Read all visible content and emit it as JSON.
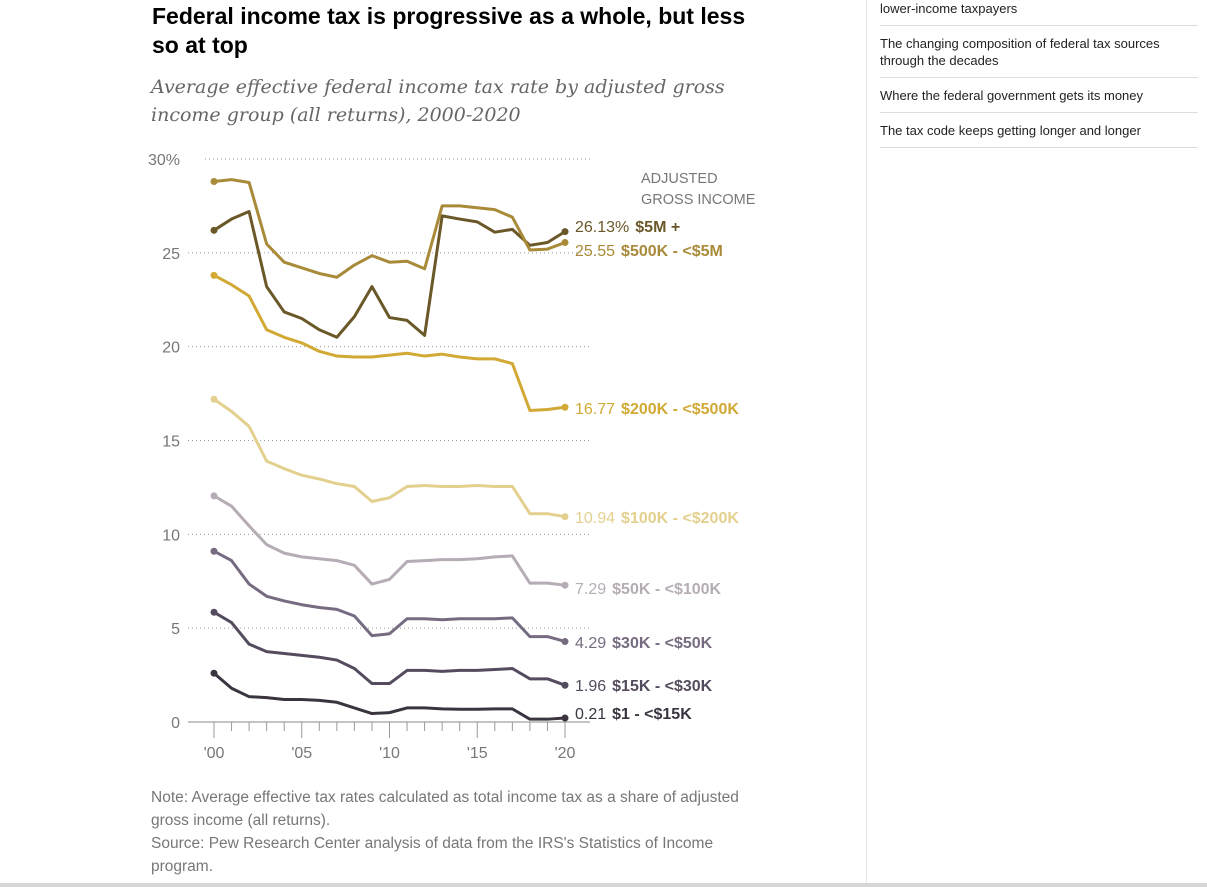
{
  "sidebar": {
    "items": [
      {
        "label": "lower-income taxpayers"
      },
      {
        "label": "The changing composition of federal tax sources through the decades"
      },
      {
        "label": "Where the federal government gets its money"
      },
      {
        "label": "The tax code keeps getting longer and longer"
      }
    ]
  },
  "chart_data": {
    "type": "line",
    "title": "Federal income tax is progressive as a whole, but less so at top",
    "subtitle": "Average effective federal income tax rate by adjusted gross income group (all returns), 2000-2020",
    "legend_title": [
      "ADJUSTED",
      "GROSS INCOME"
    ],
    "legend_placement": "right",
    "xlabel": "",
    "ylabel": "",
    "x": [
      2000,
      2001,
      2002,
      2003,
      2004,
      2005,
      2006,
      2007,
      2008,
      2009,
      2010,
      2011,
      2012,
      2013,
      2014,
      2015,
      2016,
      2017,
      2018,
      2019,
      2020
    ],
    "ylim": [
      0,
      30
    ],
    "yticks": [
      {
        "value": 30,
        "label": "30%"
      },
      {
        "value": 25,
        "label": "25"
      },
      {
        "value": 20,
        "label": "20"
      },
      {
        "value": 15,
        "label": "15"
      },
      {
        "value": 10,
        "label": "10"
      },
      {
        "value": 5,
        "label": "5"
      },
      {
        "value": 0,
        "label": "0"
      }
    ],
    "xticks": [
      {
        "value": 2000,
        "label": "'00"
      },
      {
        "value": 2005,
        "label": "'05"
      },
      {
        "value": 2010,
        "label": "'10"
      },
      {
        "value": 2015,
        "label": "'15"
      },
      {
        "value": 2020,
        "label": "'20"
      }
    ],
    "grid": true,
    "series": [
      {
        "name": "$5M +",
        "end_label": "26.13%",
        "color": "#6b5828",
        "values": [
          26.2,
          26.8,
          27.2,
          23.2,
          21.85,
          21.5,
          20.9,
          20.5,
          21.6,
          23.2,
          21.55,
          21.4,
          20.6,
          26.97,
          26.8,
          26.65,
          26.1,
          26.25,
          25.4,
          25.55,
          26.13
        ]
      },
      {
        "name": "$500K - <$5M",
        "end_label": "25.55",
        "color": "#a88a38",
        "values": [
          28.8,
          28.9,
          28.75,
          25.47,
          24.5,
          24.2,
          23.9,
          23.7,
          24.35,
          24.85,
          24.5,
          24.55,
          24.15,
          27.5,
          27.5,
          27.4,
          27.3,
          26.9,
          25.15,
          25.2,
          25.55
        ]
      },
      {
        "name": "$200K - <$500K",
        "end_label": "16.77",
        "color": "#d1a934",
        "values": [
          23.8,
          23.3,
          22.7,
          20.9,
          20.5,
          20.2,
          19.75,
          19.5,
          19.45,
          19.45,
          19.55,
          19.65,
          19.5,
          19.6,
          19.45,
          19.35,
          19.35,
          19.1,
          16.6,
          16.65,
          16.77
        ]
      },
      {
        "name": "$100K - <$200K",
        "end_label": "10.94",
        "color": "#e4d08e",
        "values": [
          17.2,
          16.55,
          15.75,
          13.9,
          13.5,
          13.15,
          12.95,
          12.7,
          12.55,
          11.75,
          11.95,
          12.55,
          12.6,
          12.55,
          12.55,
          12.6,
          12.55,
          12.55,
          11.1,
          11.1,
          10.94
        ]
      },
      {
        "name": "$50K - <$100K",
        "end_label": "7.29",
        "color": "#b5acb5",
        "values": [
          12.05,
          11.5,
          10.45,
          9.45,
          9.0,
          8.8,
          8.7,
          8.6,
          8.35,
          7.35,
          7.6,
          8.55,
          8.6,
          8.65,
          8.65,
          8.7,
          8.8,
          8.85,
          7.4,
          7.4,
          7.29
        ]
      },
      {
        "name": "$30K - <$50K",
        "end_label": "4.29",
        "color": "#766b80",
        "values": [
          9.1,
          8.6,
          7.35,
          6.7,
          6.45,
          6.25,
          6.1,
          6.0,
          5.65,
          4.6,
          4.7,
          5.5,
          5.5,
          5.45,
          5.5,
          5.5,
          5.5,
          5.55,
          4.55,
          4.55,
          4.29
        ]
      },
      {
        "name": "$15K - <$30K",
        "end_label": "1.96",
        "color": "#554b5e",
        "values": [
          5.85,
          5.3,
          4.15,
          3.75,
          3.65,
          3.55,
          3.45,
          3.3,
          2.85,
          2.05,
          2.05,
          2.75,
          2.75,
          2.7,
          2.75,
          2.75,
          2.8,
          2.85,
          2.3,
          2.3,
          1.96
        ]
      },
      {
        "name": "$1 - <$15K",
        "end_label": "0.21",
        "color": "#3a3440",
        "values": [
          2.6,
          1.8,
          1.35,
          1.3,
          1.2,
          1.2,
          1.15,
          1.05,
          0.75,
          0.45,
          0.5,
          0.75,
          0.75,
          0.7,
          0.68,
          0.68,
          0.7,
          0.7,
          0.15,
          0.15,
          0.21
        ]
      }
    ],
    "note": "Note: Average effective tax rates calculated as total income tax as a share of adjusted gross income (all returns).",
    "source": "Source: Pew Research Center analysis of data from the IRS's Statistics of Income program."
  }
}
